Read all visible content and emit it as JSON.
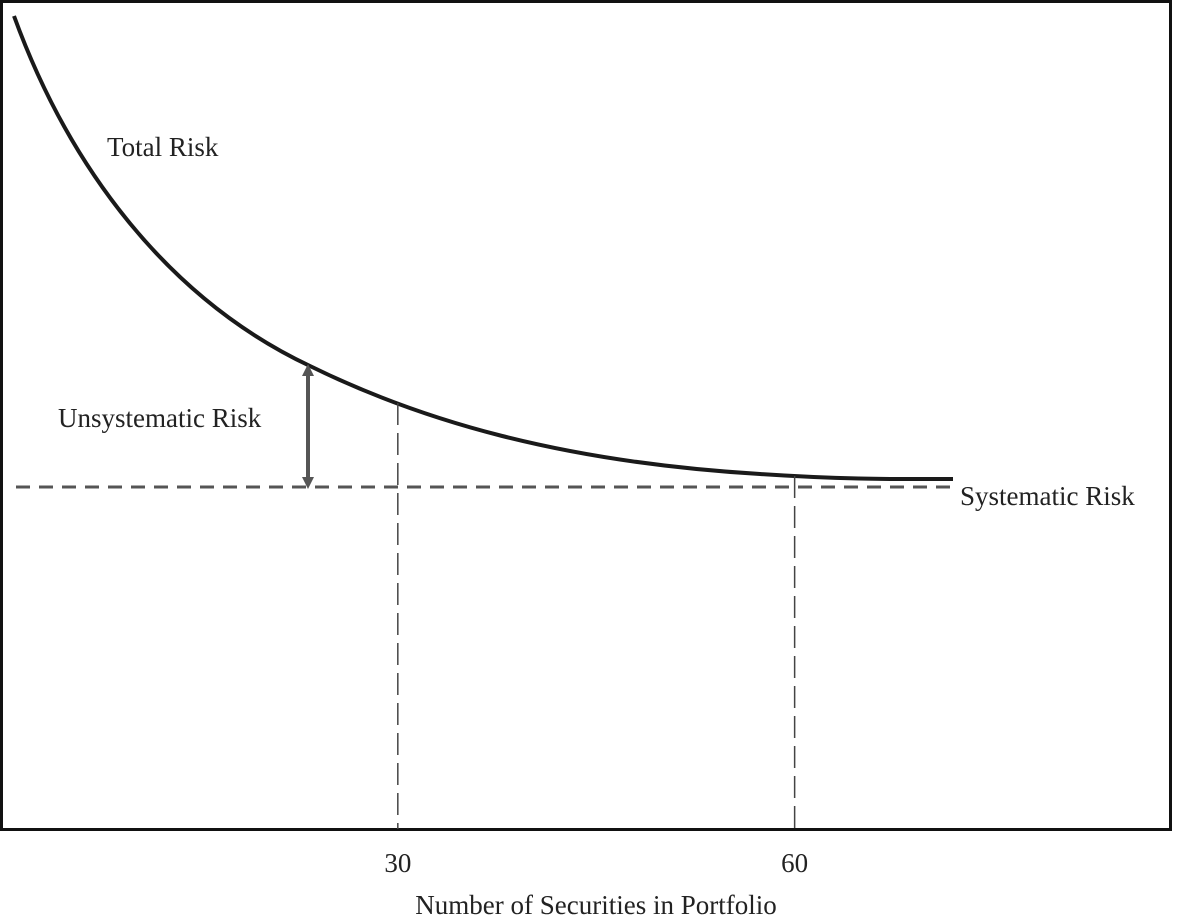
{
  "chart_data": {
    "type": "line",
    "x_label": "Number of Securities in Portfolio",
    "xlim": [
      0,
      88
    ],
    "xticks": [
      30,
      60
    ],
    "annotations": [
      "Total Risk",
      "Unsystematic Risk",
      "Systematic Risk"
    ]
  }
}
